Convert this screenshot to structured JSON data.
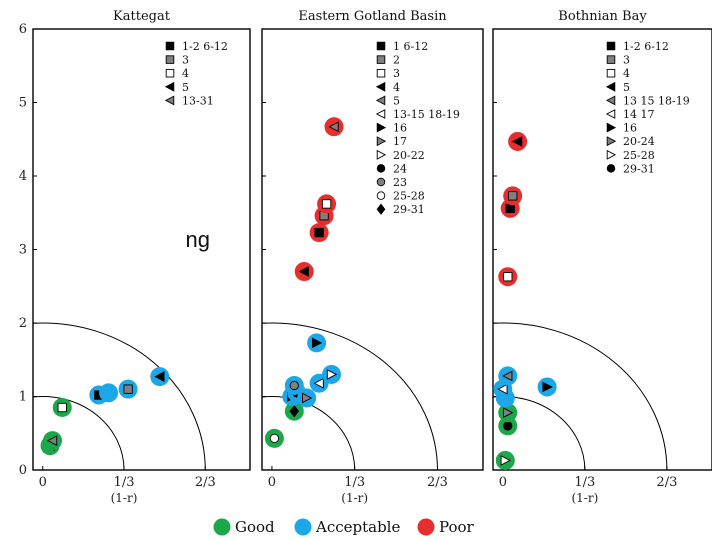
{
  "colors": {
    "good": "#1ba84a",
    "acceptable": "#1ca7e8",
    "poor": "#e62e2e",
    "gray_marker": "#808080"
  },
  "artifact_text": "ng",
  "bottom_legend": [
    {
      "label": "Good",
      "color": "#1ba84a"
    },
    {
      "label": "Acceptable",
      "color": "#1ca7e8"
    },
    {
      "label": "Poor",
      "color": "#e62e2e"
    }
  ],
  "chart_data": [
    {
      "type": "scatter",
      "title": "Kattegat",
      "xlabel": "(1-r)",
      "xlim": [
        -0.04,
        0.85
      ],
      "ylim": [
        0,
        6
      ],
      "xticks": [
        {
          "v": 0,
          "label": "0"
        },
        {
          "v": 0.3333,
          "label": "1/3"
        },
        {
          "v": 0.6667,
          "label": "2/3"
        }
      ],
      "yticks": [
        "0",
        "1",
        "2",
        "3",
        "4",
        "5",
        "6"
      ],
      "arcs": [
        1,
        2
      ],
      "legend": [
        {
          "marker": "square",
          "fill": "black",
          "label": "1-2 6-12"
        },
        {
          "marker": "square",
          "fill": "gray",
          "label": "3"
        },
        {
          "marker": "square",
          "fill": "white",
          "label": "4"
        },
        {
          "marker": "tri-left",
          "fill": "black",
          "label": "5"
        },
        {
          "marker": "tri-left",
          "fill": "gray",
          "label": "13-31"
        }
      ],
      "points": [
        {
          "x": 0.03,
          "y": 0.33,
          "rating": "good",
          "marker": "tri-left",
          "fill": "gray"
        },
        {
          "x": 0.04,
          "y": 0.4,
          "rating": "good",
          "marker": "tri-left",
          "fill": "gray"
        },
        {
          "x": 0.08,
          "y": 0.85,
          "rating": "good",
          "marker": "square",
          "fill": "white"
        },
        {
          "x": 0.23,
          "y": 1.02,
          "rating": "acceptable",
          "marker": "square",
          "fill": "black"
        },
        {
          "x": 0.27,
          "y": 1.05,
          "rating": "acceptable",
          "marker": "none",
          "fill": "none"
        },
        {
          "x": 0.35,
          "y": 1.1,
          "rating": "acceptable",
          "marker": "square",
          "fill": "gray"
        },
        {
          "x": 0.48,
          "y": 1.27,
          "rating": "acceptable",
          "marker": "tri-left",
          "fill": "black"
        }
      ]
    },
    {
      "type": "scatter",
      "title": "Eastern Gotland Basin",
      "xlabel": "(1-r)",
      "xlim": [
        -0.04,
        0.85
      ],
      "ylim": [
        0,
        6
      ],
      "xticks": [
        {
          "v": 0,
          "label": "0"
        },
        {
          "v": 0.3333,
          "label": "1/3"
        },
        {
          "v": 0.6667,
          "label": "2/3"
        }
      ],
      "yticks": [
        "0",
        "1",
        "2",
        "3",
        "4",
        "5",
        "6"
      ],
      "arcs": [
        1,
        2
      ],
      "legend": [
        {
          "marker": "square",
          "fill": "black",
          "label": "1 6-12"
        },
        {
          "marker": "square",
          "fill": "gray",
          "label": "2"
        },
        {
          "marker": "square",
          "fill": "white",
          "label": "3"
        },
        {
          "marker": "tri-left",
          "fill": "black",
          "label": "4"
        },
        {
          "marker": "tri-left",
          "fill": "gray",
          "label": "5"
        },
        {
          "marker": "tri-left",
          "fill": "white",
          "label": "13-15 18-19"
        },
        {
          "marker": "tri-right",
          "fill": "black",
          "label": "16"
        },
        {
          "marker": "tri-right",
          "fill": "gray",
          "label": "17"
        },
        {
          "marker": "tri-right",
          "fill": "white",
          "label": "20-22"
        },
        {
          "marker": "circle",
          "fill": "black",
          "label": "24"
        },
        {
          "marker": "circle",
          "fill": "gray",
          "label": "23"
        },
        {
          "marker": "circle",
          "fill": "white",
          "label": "25-28"
        },
        {
          "marker": "diamond",
          "fill": "black",
          "label": "29-31"
        }
      ],
      "points": [
        {
          "x": 0.01,
          "y": 0.43,
          "rating": "good",
          "marker": "circle",
          "fill": "white"
        },
        {
          "x": 0.09,
          "y": 0.8,
          "rating": "good",
          "marker": "diamond",
          "fill": "black"
        },
        {
          "x": 0.08,
          "y": 1.0,
          "rating": "acceptable",
          "marker": "tri-right",
          "fill": "black"
        },
        {
          "x": 0.1,
          "y": 1.05,
          "rating": "acceptable",
          "marker": "circle",
          "fill": "black"
        },
        {
          "x": 0.09,
          "y": 1.15,
          "rating": "acceptable",
          "marker": "circle",
          "fill": "gray"
        },
        {
          "x": 0.14,
          "y": 0.98,
          "rating": "acceptable",
          "marker": "tri-right",
          "fill": "gray"
        },
        {
          "x": 0.19,
          "y": 1.18,
          "rating": "acceptable",
          "marker": "tri-left",
          "fill": "white"
        },
        {
          "x": 0.24,
          "y": 1.3,
          "rating": "acceptable",
          "marker": "tri-right",
          "fill": "white"
        },
        {
          "x": 0.18,
          "y": 1.73,
          "rating": "acceptable",
          "marker": "tri-right",
          "fill": "black"
        },
        {
          "x": 0.13,
          "y": 2.7,
          "rating": "poor",
          "marker": "tri-left",
          "fill": "black"
        },
        {
          "x": 0.19,
          "y": 3.23,
          "rating": "poor",
          "marker": "square",
          "fill": "black"
        },
        {
          "x": 0.21,
          "y": 3.46,
          "rating": "poor",
          "marker": "square",
          "fill": "gray"
        },
        {
          "x": 0.22,
          "y": 3.62,
          "rating": "poor",
          "marker": "square",
          "fill": "white"
        },
        {
          "x": 0.25,
          "y": 4.67,
          "rating": "poor",
          "marker": "tri-left",
          "fill": "gray"
        }
      ]
    },
    {
      "type": "scatter",
      "title": "Bothnian Bay",
      "xlabel": "(1-r)",
      "xlim": [
        -0.04,
        0.85
      ],
      "ylim": [
        0,
        6
      ],
      "xticks": [
        {
          "v": 0,
          "label": "0"
        },
        {
          "v": 0.3333,
          "label": "1/3"
        },
        {
          "v": 0.6667,
          "label": "2/3"
        }
      ],
      "yticks": [
        "0",
        "1",
        "2",
        "3",
        "4",
        "5",
        "6"
      ],
      "arcs": [
        1,
        2
      ],
      "legend": [
        {
          "marker": "square",
          "fill": "black",
          "label": "1-2 6-12"
        },
        {
          "marker": "square",
          "fill": "gray",
          "label": "3"
        },
        {
          "marker": "square",
          "fill": "white",
          "label": "4"
        },
        {
          "marker": "tri-left",
          "fill": "black",
          "label": "5"
        },
        {
          "marker": "tri-left",
          "fill": "gray",
          "label": "13 15 18-19"
        },
        {
          "marker": "tri-left",
          "fill": "white",
          "label": "14 17"
        },
        {
          "marker": "tri-right",
          "fill": "black",
          "label": "16"
        },
        {
          "marker": "tri-right",
          "fill": "gray",
          "label": "20-24"
        },
        {
          "marker": "tri-right",
          "fill": "white",
          "label": "25-28"
        },
        {
          "marker": "circle",
          "fill": "black",
          "label": "29-31"
        }
      ],
      "points": [
        {
          "x": 0.01,
          "y": 0.13,
          "rating": "good",
          "marker": "tri-right",
          "fill": "white"
        },
        {
          "x": 0.02,
          "y": 0.6,
          "rating": "good",
          "marker": "circle",
          "fill": "black"
        },
        {
          "x": 0.02,
          "y": 0.78,
          "rating": "good",
          "marker": "tri-right",
          "fill": "gray"
        },
        {
          "x": 0.01,
          "y": 0.98,
          "rating": "acceptable",
          "marker": "none",
          "fill": "none"
        },
        {
          "x": 0.0,
          "y": 1.1,
          "rating": "acceptable",
          "marker": "tri-left",
          "fill": "white"
        },
        {
          "x": 0.02,
          "y": 1.28,
          "rating": "acceptable",
          "marker": "tri-left",
          "fill": "gray"
        },
        {
          "x": 0.18,
          "y": 1.13,
          "rating": "acceptable",
          "marker": "tri-right",
          "fill": "black"
        },
        {
          "x": 0.02,
          "y": 2.63,
          "rating": "poor",
          "marker": "square",
          "fill": "white"
        },
        {
          "x": 0.03,
          "y": 3.56,
          "rating": "poor",
          "marker": "square",
          "fill": "black"
        },
        {
          "x": 0.04,
          "y": 3.73,
          "rating": "poor",
          "marker": "square",
          "fill": "gray"
        },
        {
          "x": 0.06,
          "y": 4.47,
          "rating": "poor",
          "marker": "tri-left",
          "fill": "black"
        }
      ]
    }
  ]
}
